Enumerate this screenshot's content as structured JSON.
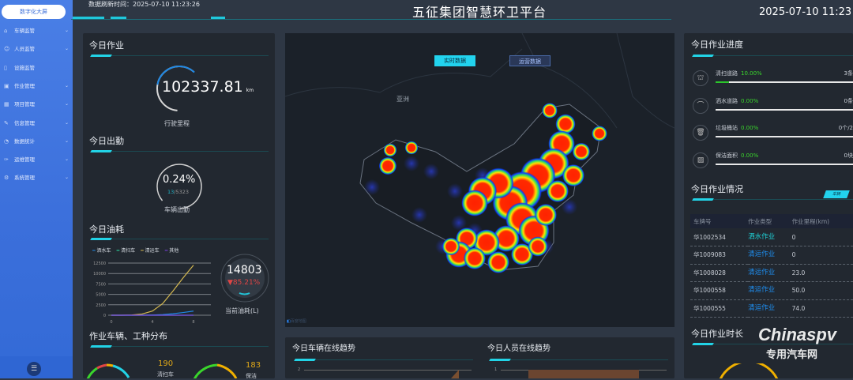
{
  "sidebar": {
    "top": "数字化大屏",
    "items": [
      {
        "label": "车辆监管",
        "icon": "home-icon",
        "chev": true
      },
      {
        "label": "人员监管",
        "icon": "user-icon",
        "chev": true
      },
      {
        "label": "设施监管",
        "icon": "file-icon",
        "chev": false
      },
      {
        "label": "作业管理",
        "icon": "calendar-icon",
        "chev": true
      },
      {
        "label": "项目管理",
        "icon": "grid-icon",
        "chev": true
      },
      {
        "label": "信息管理",
        "icon": "edit-icon",
        "chev": true
      },
      {
        "label": "数据统计",
        "icon": "pie-icon",
        "chev": true
      },
      {
        "label": "运维管理",
        "icon": "wrench-icon",
        "chev": true
      },
      {
        "label": "系统管理",
        "icon": "gear-icon",
        "chev": true
      }
    ],
    "collapse_icon": "menu-fold-icon"
  },
  "header": {
    "refresh": "数据刷新时间：2025-07-10 11:23:26",
    "title": "五征集团智慧环卫平台",
    "clock": "2025-07-10 11:23"
  },
  "left": {
    "work_title": "今日作业",
    "mileage": "102337.81",
    "mileage_unit": "km",
    "mileage_label": "行驶里程",
    "attend_title": "今日出勤",
    "attend_pct": "0.24%",
    "attend_on": "13",
    "attend_total": "/5323",
    "attend_label": "车辆出勤",
    "fuel_title": "今日油耗",
    "fuel_value": "14803",
    "fuel_change": "85.21%",
    "fuel_label": "当前油耗(L)",
    "dist_title": "作业车辆、工种分布",
    "dist": [
      {
        "value": "190",
        "label": "清扫车"
      },
      {
        "value": "183",
        "label": "保洁"
      }
    ]
  },
  "chart_data": [
    {
      "type": "line",
      "legend": [
        "洒水车",
        "清扫车",
        "清运车",
        "其他"
      ],
      "colors": [
        "#1e88e5",
        "#2ee6a8",
        "#d4b850",
        "#7b3fe0"
      ],
      "x": [
        0,
        1,
        2,
        3,
        4,
        5,
        6,
        7,
        8
      ],
      "xticks": [
        "0",
        "4",
        "8"
      ],
      "yticks": [
        "0",
        "2500",
        "5000",
        "7500",
        "10000",
        "12500"
      ],
      "ylim": [
        0,
        12500
      ],
      "series": [
        {
          "name": "洒水车",
          "values": [
            0,
            0,
            0,
            20,
            60,
            150,
            350,
            650,
            1000
          ]
        },
        {
          "name": "清扫车",
          "values": [
            0,
            0,
            0,
            0,
            0,
            0,
            0,
            0,
            0
          ]
        },
        {
          "name": "清运车",
          "values": [
            0,
            0,
            50,
            300,
            1000,
            2800,
            5800,
            9000,
            12000
          ]
        },
        {
          "name": "其他",
          "values": [
            0,
            0,
            0,
            0,
            0,
            0,
            0,
            0,
            0
          ]
        }
      ]
    },
    {
      "type": "area",
      "title": "今日车辆在线趋势",
      "yticks": [
        "2"
      ]
    },
    {
      "type": "area",
      "title": "今日人员在线趋势",
      "yticks": [
        "1"
      ]
    }
  ],
  "map": {
    "btn_live": "实时数据",
    "btn_ops": "运营数据",
    "label": "亚洲",
    "credit": "百度地图"
  },
  "right": {
    "progress_title": "今日作业进度",
    "progress": [
      {
        "label": "清扫道路",
        "pct": "10.00%",
        "value": "3条",
        "fraction": 0.1,
        "icon": "sweep-icon",
        "glyph": "⛫"
      },
      {
        "label": "洒水道路",
        "pct": "0.00%",
        "value": "0条",
        "fraction": 0,
        "icon": "sprinkler-icon",
        "glyph": "⌒"
      },
      {
        "label": "垃圾桶站",
        "pct": "0.00%",
        "value": "0个/2",
        "fraction": 0,
        "icon": "trash-icon",
        "glyph": "🗑"
      },
      {
        "label": "保洁面积",
        "pct": "0.00%",
        "value": "0块",
        "fraction": 0,
        "icon": "area-icon",
        "glyph": "▨"
      }
    ],
    "status_title": "今日作业情况",
    "status_tab": "车辆",
    "columns": [
      "车牌号",
      "作业类型",
      "作业里程(km)"
    ],
    "rows": [
      {
        "plate": "华1002534",
        "type": "洒水作业",
        "km": "0",
        "color": "#1fd1d6"
      },
      {
        "plate": "华1009083",
        "type": "清运作业",
        "km": "0",
        "color": "#1e8ef0"
      },
      {
        "plate": "华1008028",
        "type": "清运作业",
        "km": "23.0",
        "color": "#1e8ef0"
      },
      {
        "plate": "华1000558",
        "type": "清运作业",
        "km": "50.0",
        "color": "#1e8ef0"
      },
      {
        "plate": "华1000555",
        "type": "清运作业",
        "km": "74.0",
        "color": "#1e8ef0"
      }
    ],
    "duration_title": "今日作业时长"
  },
  "watermark": {
    "brand": "Chinaspv",
    "sub": "专用汽车网"
  }
}
